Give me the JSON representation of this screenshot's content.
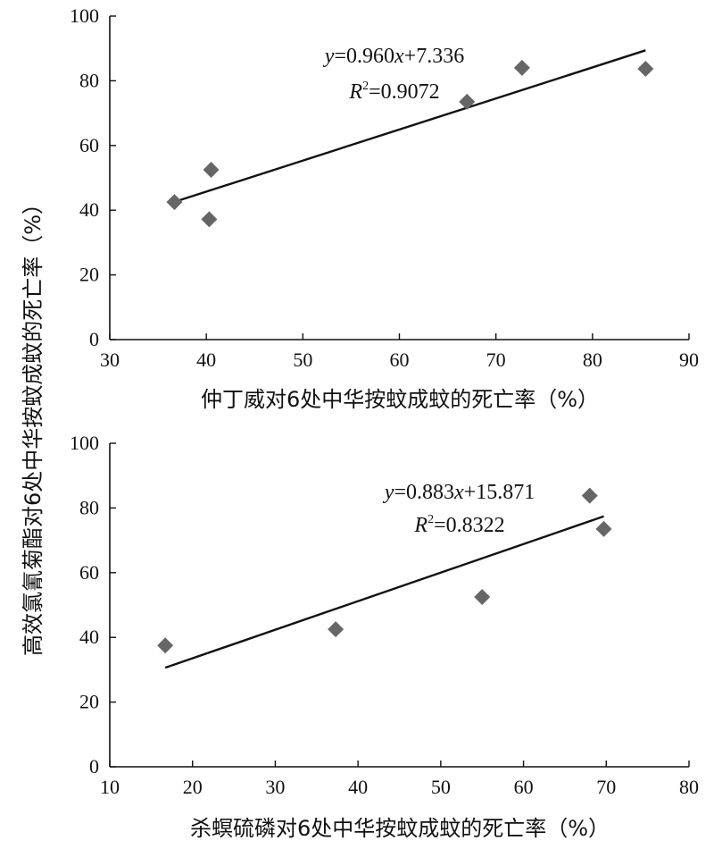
{
  "shared_ylabel": "高效氯氰菊酯对6处中华按蚊成蚊的死亡率（%）",
  "chart_data": [
    {
      "type": "scatter",
      "xlabel": "仲丁威对6处中华按蚊成蚊的死亡率（%）",
      "xlim": [
        30,
        90
      ],
      "ylim": [
        0,
        100
      ],
      "xticks": [
        30,
        40,
        50,
        60,
        70,
        80,
        90
      ],
      "yticks": [
        0,
        20,
        40,
        60,
        80,
        100
      ],
      "points": [
        {
          "x": 36.7,
          "y": 42.5
        },
        {
          "x": 40.5,
          "y": 52.5
        },
        {
          "x": 40.3,
          "y": 37.2
        },
        {
          "x": 67.0,
          "y": 73.5
        },
        {
          "x": 72.7,
          "y": 84.0
        },
        {
          "x": 85.5,
          "y": 83.7
        }
      ],
      "trendline": {
        "slope": 0.96,
        "intercept": 7.336,
        "x_range": [
          36.7,
          85.5
        ]
      },
      "annotation": {
        "y_var": "y",
        "eq_sign": "=",
        "slope_text": "0.960",
        "x_var": "x",
        "plus": "+",
        "intercept_text": "7.336",
        "r_var": "R",
        "r_sup": "2",
        "r2_text": "0.9072"
      },
      "grid": false,
      "legend": "none",
      "colors": {
        "marker": "#666666",
        "line": "#111111"
      }
    },
    {
      "type": "scatter",
      "xlabel": "杀螟硫磷对6处中华按蚊成蚊的死亡率（%）",
      "xlim": [
        10,
        80
      ],
      "ylim": [
        0,
        100
      ],
      "xticks": [
        10,
        20,
        30,
        40,
        50,
        60,
        70,
        80
      ],
      "yticks": [
        0,
        20,
        40,
        60,
        80,
        100
      ],
      "points": [
        {
          "x": 16.7,
          "y": 37.5
        },
        {
          "x": 37.3,
          "y": 42.5
        },
        {
          "x": 55.0,
          "y": 52.5
        },
        {
          "x": 68.0,
          "y": 83.8
        },
        {
          "x": 69.7,
          "y": 73.5
        }
      ],
      "trendline": {
        "slope": 0.883,
        "intercept": 15.871,
        "x_range": [
          16.7,
          69.7
        ]
      },
      "annotation": {
        "y_var": "y",
        "eq_sign": "=",
        "slope_text": "0.883",
        "x_var": "x",
        "plus": "+",
        "intercept_text": "15.871",
        "r_var": "R",
        "r_sup": "2",
        "r2_text": "0.8322"
      },
      "grid": false,
      "legend": "none",
      "colors": {
        "marker": "#666666",
        "line": "#111111"
      }
    }
  ]
}
